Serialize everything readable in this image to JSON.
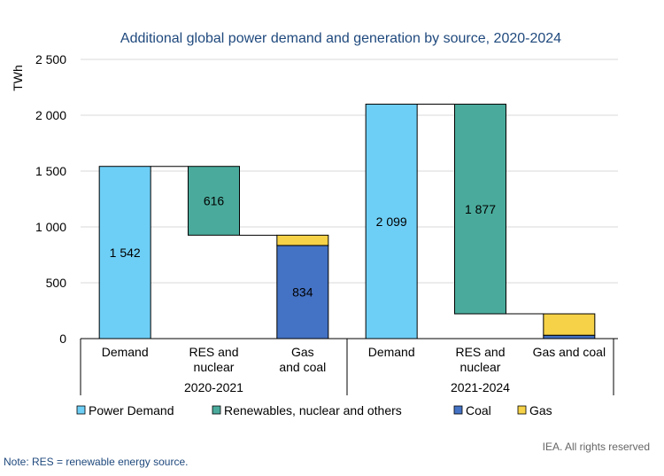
{
  "chart_data": {
    "type": "bar",
    "subtype": "waterfall",
    "title": "Additional global power demand and generation by source, 2020-2024",
    "ylabel": "TWh",
    "ylim": [
      0,
      2500
    ],
    "yticks": [
      0,
      500,
      1000,
      1500,
      2000,
      2500
    ],
    "ytick_labels": [
      "0",
      "500",
      "1 000",
      "1 500",
      "2 000",
      "2 500"
    ],
    "grid": true,
    "legend_position": "bottom",
    "groups": [
      {
        "label": "2020-2021",
        "bars": [
          {
            "category": "Demand",
            "segments": [
              {
                "series": "power_demand",
                "base": 0,
                "value": 1542,
                "label": "1 542"
              }
            ]
          },
          {
            "category": "RES and nuclear",
            "segments": [
              {
                "series": "renewables",
                "base": 926,
                "value": 616,
                "label": "616"
              }
            ]
          },
          {
            "category": "Gas and coal",
            "segments": [
              {
                "series": "coal",
                "base": 0,
                "value": 834,
                "label": "834"
              },
              {
                "series": "gas",
                "base": 834,
                "value": 92,
                "label": ""
              }
            ]
          }
        ]
      },
      {
        "label": "2021-2024",
        "bars": [
          {
            "category": "Demand",
            "segments": [
              {
                "series": "power_demand",
                "base": 0,
                "value": 2099,
                "label": "2 099"
              }
            ]
          },
          {
            "category": "RES and nuclear",
            "segments": [
              {
                "series": "renewables",
                "base": 222,
                "value": 1877,
                "label": "1 877"
              }
            ]
          },
          {
            "category": "Gas and coal",
            "segments": [
              {
                "series": "coal",
                "base": 0,
                "value": 30,
                "label": ""
              },
              {
                "series": "gas",
                "base": 30,
                "value": 192,
                "label": ""
              }
            ]
          }
        ]
      }
    ],
    "connectors": [
      {
        "group": 0,
        "from": 0,
        "to": 1,
        "value": 1542
      },
      {
        "group": 0,
        "from": 1,
        "to": 2,
        "value": 926
      },
      {
        "group": 1,
        "from": 0,
        "to": 1,
        "value": 2099
      },
      {
        "group": 1,
        "from": 1,
        "to": 2,
        "value": 222
      }
    ],
    "series": [
      {
        "key": "power_demand",
        "name": "Power Demand",
        "color": "#6ecff6"
      },
      {
        "key": "renewables",
        "name": "Renewables, nuclear and others",
        "color": "#4aab9c"
      },
      {
        "key": "coal",
        "name": "Coal",
        "color": "#4472c4"
      },
      {
        "key": "gas",
        "name": "Gas",
        "color": "#f5d247"
      }
    ]
  },
  "credit": "IEA. All rights reserved",
  "note": "Note: RES = renewable energy source."
}
